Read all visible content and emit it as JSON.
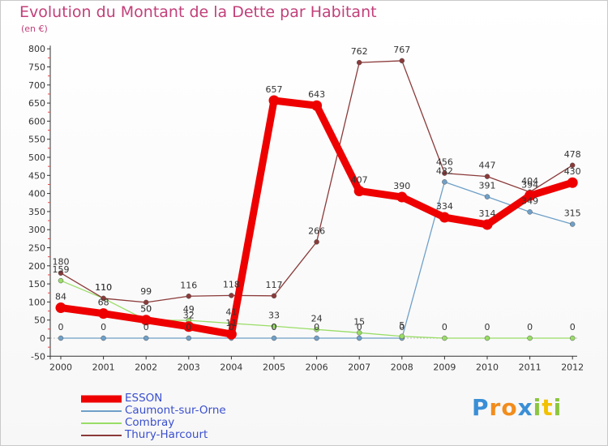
{
  "header": {
    "title": "Evolution du Montant de la Dette par Habitant",
    "unit": "(en €)"
  },
  "logo": {
    "letters": [
      "P",
      "r",
      "o",
      "x",
      "i",
      "t",
      "i"
    ],
    "colors": [
      "#3a8fd6",
      "#f28c1c",
      "#f28c1c",
      "#3a8fd6",
      "#8cc63f",
      "#f2c100",
      "#8cc63f"
    ]
  },
  "chart_data": {
    "type": "line",
    "x": [
      "2000",
      "2001",
      "2002",
      "2003",
      "2004",
      "2005",
      "2006",
      "2007",
      "2008",
      "2009",
      "2010",
      "2011",
      "2012"
    ],
    "ylim": [
      -50,
      800
    ],
    "yticks": [
      -50,
      0,
      50,
      100,
      150,
      200,
      250,
      300,
      350,
      400,
      450,
      500,
      550,
      600,
      650,
      700,
      750,
      800
    ],
    "grid": false,
    "legend_position": "bottom-left",
    "series": [
      {
        "name": "ESSON",
        "color": "#ee0000",
        "values": [
          84,
          68,
          50,
          32,
          11,
          657,
          643,
          407,
          390,
          334,
          314,
          394,
          430
        ],
        "labels": [
          "84",
          "68",
          "50",
          "32",
          "11",
          "657",
          "643",
          "407",
          "390",
          "334",
          "314",
          "394",
          "430"
        ]
      },
      {
        "name": "Caumont-sur-Orne",
        "color": "#6fa0c8",
        "values": [
          0,
          0,
          0,
          0,
          0,
          0,
          0,
          0,
          0,
          432,
          391,
          349,
          315
        ],
        "labels": [
          "0",
          "0",
          "0",
          "0",
          "0",
          "0",
          "0",
          "0",
          "0",
          "432",
          "391",
          "349",
          "315"
        ]
      },
      {
        "name": "Combray",
        "color": "#99dd66",
        "values": [
          159,
          110,
          50,
          49,
          41,
          33,
          24,
          15,
          5,
          0,
          0,
          0,
          0
        ],
        "labels": [
          "159",
          "110",
          "50",
          "49",
          "41",
          "33",
          "24",
          "15",
          "5",
          "0",
          "0",
          "0",
          "0"
        ]
      },
      {
        "name": "Thury-Harcourt",
        "color": "#8b3a3a",
        "values": [
          180,
          110,
          99,
          116,
          118,
          117,
          266,
          762,
          767,
          456,
          447,
          404,
          478
        ],
        "labels": [
          "180",
          "110",
          "99",
          "116",
          "118",
          "117",
          "266",
          "762",
          "767",
          "456",
          "447",
          "404",
          "478"
        ]
      }
    ]
  }
}
